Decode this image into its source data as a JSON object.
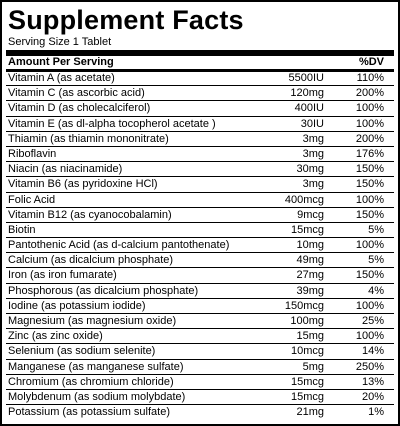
{
  "title": "Supplement Facts",
  "serving": "Serving Size 1 Tablet",
  "header": {
    "name": "Amount Per Serving",
    "dv": "%DV"
  },
  "rows": [
    {
      "name": "Vitamin A (as acetate)",
      "amount": "5500IU",
      "dv": "110%"
    },
    {
      "name": "Vitamin C (as ascorbic acid)",
      "amount": "120mg",
      "dv": "200%"
    },
    {
      "name": "Vitamin D (as cholecalciferol)",
      "amount": "400IU",
      "dv": "100%"
    },
    {
      "name": "Vitamin E (as dl-alpha tocopherol acetate  )",
      "amount": "30IU",
      "dv": "100%"
    },
    {
      "name": "Thiamin (as thiamin mononitrate)",
      "amount": "3mg",
      "dv": "200%"
    },
    {
      "name": "Riboflavin",
      "amount": "3mg",
      "dv": "176%"
    },
    {
      "name": "Niacin (as niacinamide)",
      "amount": "30mg",
      "dv": "150%"
    },
    {
      "name": "Vitamin B6 (as pyridoxine HCl)",
      "amount": "3mg",
      "dv": "150%"
    },
    {
      "name": "Folic Acid",
      "amount": "400mcg",
      "dv": "100%"
    },
    {
      "name": "Vitamin B12 (as cyanocobalamin)",
      "amount": "9mcg",
      "dv": "150%"
    },
    {
      "name": "Biotin",
      "amount": "15mcg",
      "dv": "5%"
    },
    {
      "name": "Pantothenic Acid (as d-calcium pantothenate)",
      "amount": "10mg",
      "dv": "100%"
    },
    {
      "name": "Calcium (as dicalcium phosphate)",
      "amount": "49mg",
      "dv": "5%"
    },
    {
      "name": "Iron (as iron fumarate)",
      "amount": "27mg",
      "dv": "150%"
    },
    {
      "name": "Phosphorous (as dicalcium phosphate)",
      "amount": "39mg",
      "dv": "4%"
    },
    {
      "name": "Iodine (as potassium iodide)",
      "amount": "150mcg",
      "dv": "100%"
    },
    {
      "name": "Magnesium (as magnesium oxide)",
      "amount": "100mg",
      "dv": "25%"
    },
    {
      "name": "Zinc (as zinc oxide)",
      "amount": "15mg",
      "dv": "100%"
    },
    {
      "name": "Selenium (as sodium selenite)",
      "amount": "10mcg",
      "dv": "14%"
    },
    {
      "name": "Manganese (as manganese sulfate)",
      "amount": "5mg",
      "dv": "250%"
    },
    {
      "name": "Chromium (as chromium chloride)",
      "amount": "15mcg",
      "dv": "13%"
    },
    {
      "name": "Molybdenum (as sodium molybdate)",
      "amount": "15mcg",
      "dv": "20%"
    },
    {
      "name": "Potassium (as potassium sulfate)",
      "amount": "21mg",
      "dv": "1%"
    }
  ]
}
